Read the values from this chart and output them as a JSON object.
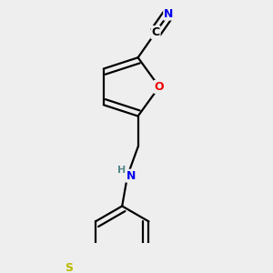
{
  "background_color": "#eeeeee",
  "atom_colors": {
    "C": "#000000",
    "N": "#0000ee",
    "O": "#ee0000",
    "S": "#bbbb00",
    "H": "#558888"
  },
  "figsize": [
    3.0,
    3.0
  ],
  "dpi": 100,
  "bond_lw": 1.6,
  "font_size": 9
}
